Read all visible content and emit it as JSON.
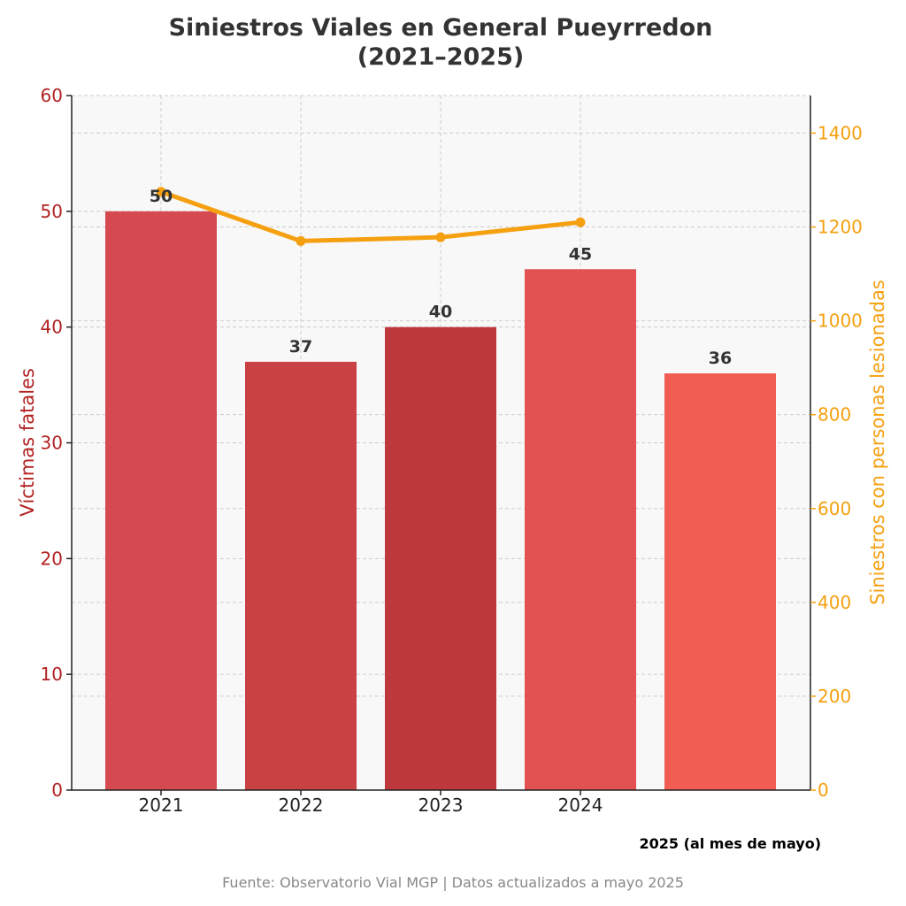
{
  "chart_data": {
    "type": "bar",
    "title_line1": "Siniestros Viales en General Pueyrredon",
    "title_line2": "(2021–2025)",
    "categories": [
      "2021",
      "2022",
      "2023",
      "2024",
      ""
    ],
    "series": [
      {
        "type": "bar",
        "axis": "left",
        "values": [
          50,
          37,
          40,
          45,
          36
        ],
        "colors": [
          "#d44a50",
          "#ca4144",
          "#be393c",
          "#e25252",
          "#f25d53"
        ]
      },
      {
        "type": "line",
        "axis": "right",
        "values": [
          1275,
          1170,
          1178,
          1210,
          null
        ],
        "color": "#f5a010"
      }
    ],
    "ylabel": "Víctimas fatales",
    "ylabel_right": "Siniestros con personas lesionadas",
    "ylim": [
      0,
      60
    ],
    "ylim_right": [
      0,
      1480
    ],
    "yticks": [
      0,
      10,
      20,
      30,
      40,
      50,
      60
    ],
    "yticks_right": [
      0,
      200,
      400,
      600,
      800,
      1000,
      1200,
      1400
    ],
    "grid": true,
    "annotation": "2025 (al mes de mayo)",
    "source": "Fuente: Observatorio Vial MGP | Datos actualizados a mayo 2025",
    "colors": {
      "left_axis": "#b22222",
      "right_axis": "#f5a010",
      "plot_background": "#f8f8f8",
      "grid": "#cccccc"
    }
  }
}
